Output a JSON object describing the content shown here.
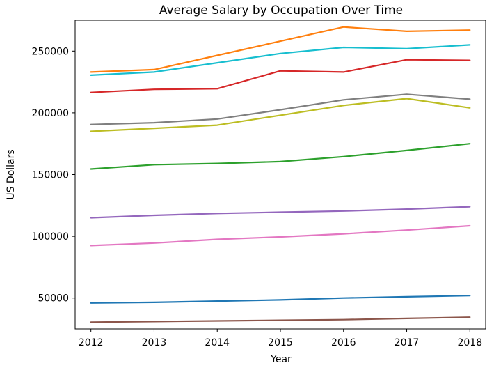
{
  "chart_data": {
    "type": "line",
    "title": "Average Salary by Occupation Over Time",
    "xlabel": "Year",
    "ylabel": "US Dollars",
    "x": [
      2012,
      2013,
      2014,
      2015,
      2016,
      2017,
      2018
    ],
    "xlim": [
      2011.75,
      2018.25
    ],
    "ylim": [
      25000,
      275000
    ],
    "yticks": [
      50000,
      100000,
      150000,
      200000,
      250000
    ],
    "grid": false,
    "series": [
      {
        "color": "#ff7f0e",
        "values": [
          233000,
          235000,
          246500,
          258000,
          269500,
          266000,
          267000
        ]
      },
      {
        "color": "#17becf",
        "values": [
          230500,
          233000,
          240500,
          248000,
          253000,
          252000,
          255000
        ]
      },
      {
        "color": "#d62728",
        "values": [
          216500,
          219000,
          219500,
          234000,
          233000,
          243000,
          242500
        ]
      },
      {
        "color": "#7f7f7f",
        "values": [
          190500,
          192000,
          195000,
          202500,
          210500,
          215000,
          211000
        ]
      },
      {
        "color": "#bcbd22",
        "values": [
          185000,
          187500,
          190000,
          198000,
          206000,
          211500,
          204000
        ]
      },
      {
        "color": "#2ca02c",
        "values": [
          154500,
          158000,
          159000,
          160500,
          164500,
          169500,
          175000
        ]
      },
      {
        "color": "#9467bd",
        "values": [
          115000,
          117000,
          118500,
          119500,
          120500,
          122000,
          124000
        ]
      },
      {
        "color": "#e377c2",
        "values": [
          92500,
          94500,
          97500,
          99500,
          102000,
          105000,
          108500
        ]
      },
      {
        "color": "#1f77b4",
        "values": [
          46000,
          46500,
          47500,
          48500,
          50000,
          51000,
          52000
        ]
      },
      {
        "color": "#8c564b",
        "values": [
          30500,
          31000,
          31500,
          32000,
          32500,
          33500,
          34500
        ]
      }
    ]
  }
}
